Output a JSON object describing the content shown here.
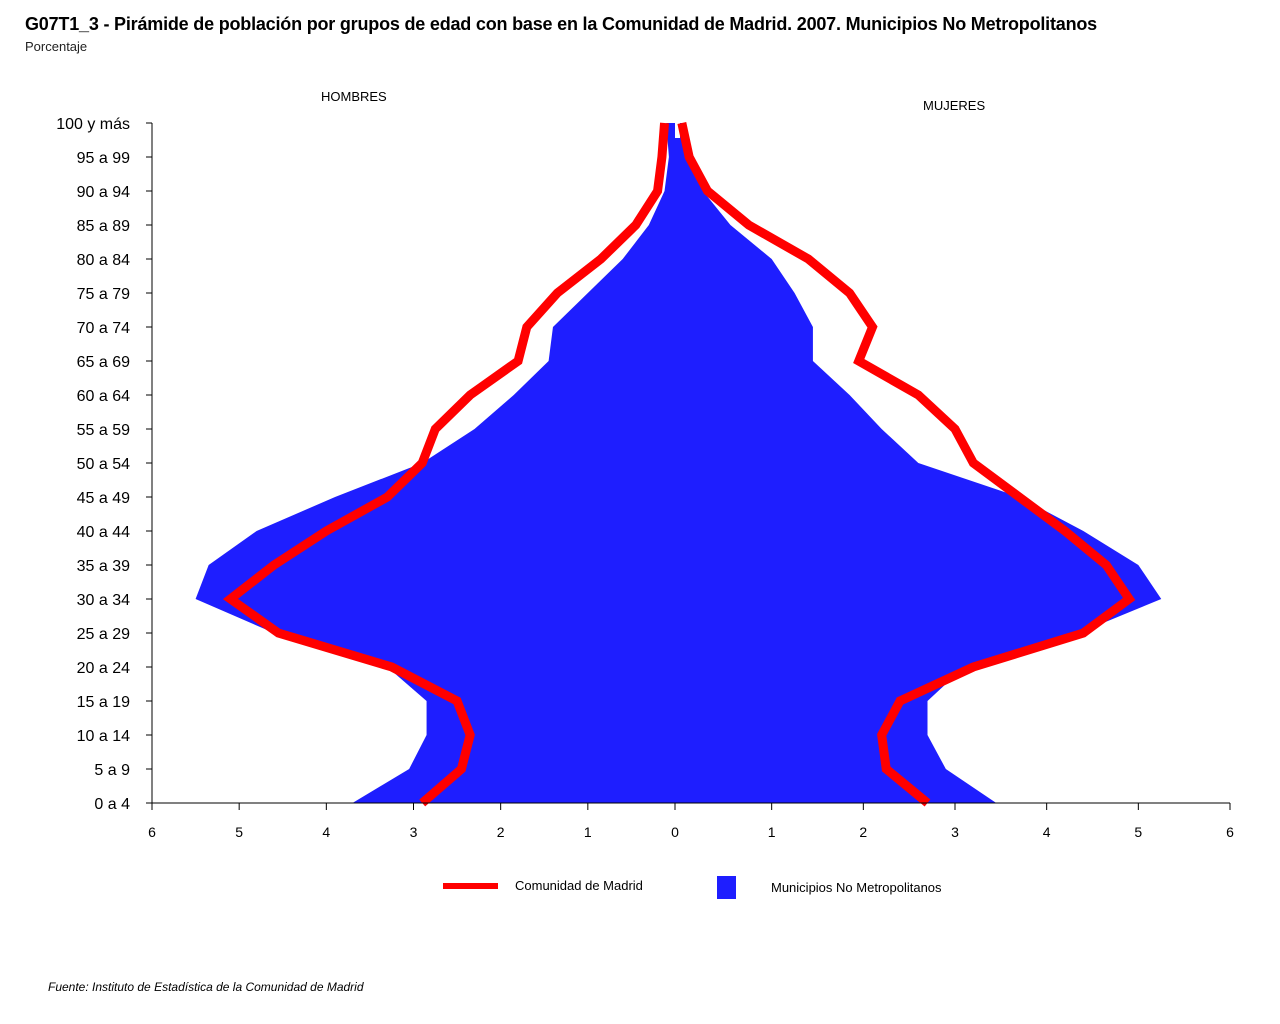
{
  "chart_data": {
    "type": "area",
    "title": "G07T1_3 - Pirámide de población por grupos de edad con base en la Comunidad de Madrid.  2007.  Municipios No Metropolitanos",
    "subtitle": "Porcentaje",
    "left_label": "HOMBRES",
    "right_label": "MUJERES",
    "source": "Fuente: Instituto de Estadística de la Comunidad de Madrid",
    "categories": [
      "0 a 4",
      "5 a 9",
      "10 a 14",
      "15 a 19",
      "20 a 24",
      "25 a 29",
      "30 a 34",
      "35 a 39",
      "40 a 44",
      "45 a 49",
      "50 a 54",
      "55 a 59",
      "60 a 64",
      "65 a 69",
      "70 a 74",
      "75 a 79",
      "80 a 84",
      "85 a 89",
      "90 a 94",
      "95 a 99",
      "100 y más"
    ],
    "x_ticks": [
      "6",
      "5",
      "4",
      "3",
      "2",
      "1",
      "0",
      "1",
      "2",
      "3",
      "4",
      "5",
      "6"
    ],
    "xlim": [
      0,
      6
    ],
    "series": [
      {
        "name": "Municipios No Metropolitanos",
        "style": "area",
        "color": "#1e1eff",
        "hombres": [
          3.7,
          3.05,
          2.85,
          2.85,
          3.3,
          4.6,
          5.5,
          5.35,
          4.8,
          3.9,
          2.9,
          2.3,
          1.85,
          1.45,
          1.4,
          1.0,
          0.6,
          0.3,
          0.12,
          0.07,
          0.1
        ],
        "mujeres": [
          3.45,
          2.9,
          2.7,
          2.7,
          3.1,
          4.35,
          5.25,
          5.0,
          4.4,
          3.7,
          2.6,
          2.2,
          1.85,
          1.45,
          1.45,
          1.25,
          1.0,
          0.55,
          0.25,
          0.08,
          0.05
        ]
      },
      {
        "name": "Comunidad de Madrid",
        "style": "line",
        "color": "#ff0000",
        "hombres": [
          2.9,
          2.45,
          2.35,
          2.5,
          3.25,
          4.55,
          5.1,
          4.6,
          4.0,
          3.3,
          2.9,
          2.75,
          2.35,
          1.8,
          1.7,
          1.35,
          0.85,
          0.45,
          0.2,
          0.15,
          0.12
        ],
        "mujeres": [
          2.7,
          2.25,
          2.2,
          2.4,
          3.2,
          4.4,
          4.9,
          4.65,
          4.2,
          3.7,
          3.2,
          3.0,
          2.6,
          1.95,
          2.1,
          1.85,
          1.4,
          0.75,
          0.3,
          0.1,
          0.02
        ]
      }
    ],
    "legend": [
      {
        "label": "Comunidad de Madrid",
        "symbol": "line",
        "color": "#ff0000"
      },
      {
        "label": "Municipios No Metropolitanos",
        "symbol": "square",
        "color": "#1e1eff"
      }
    ]
  }
}
